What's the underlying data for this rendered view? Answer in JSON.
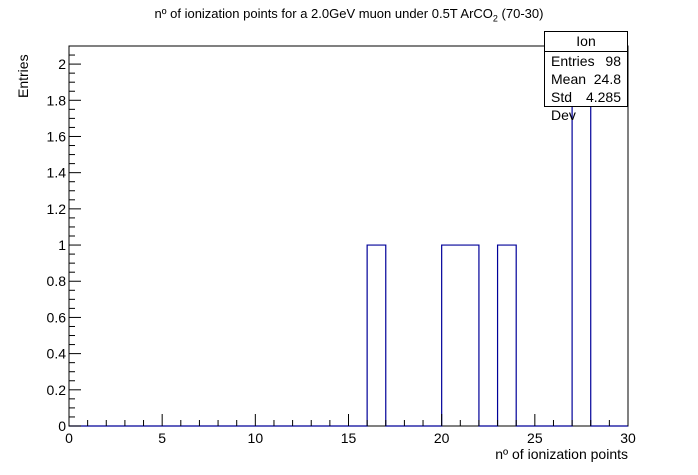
{
  "chart_data": {
    "type": "bar",
    "title_main": "nº of ionization points for a 2.0GeV muon under 0.5T ArCO",
    "title_sub": "2",
    "title_tail": " (70-30)",
    "xlabel": "nº of ionization points",
    "ylabel": "Entries",
    "xlim": [
      0,
      30
    ],
    "ylim": [
      0,
      2.1
    ],
    "bin_width": 1,
    "bins": [
      {
        "x": 16,
        "value": 1
      },
      {
        "x": 20,
        "value": 1
      },
      {
        "x": 21,
        "value": 1
      },
      {
        "x": 23,
        "value": 1
      },
      {
        "x": 27,
        "value": 2
      }
    ],
    "xticks": [
      "0",
      "5",
      "10",
      "15",
      "20",
      "25",
      "30"
    ],
    "yticks": [
      "0",
      "0.2",
      "0.4",
      "0.6",
      "0.8",
      "1",
      "1.2",
      "1.4",
      "1.6",
      "1.8",
      "2"
    ],
    "line_color": "#000099",
    "grid": false,
    "stats": {
      "title": "Ion",
      "entries_label": "Entries",
      "entries_value": "98",
      "mean_label": "Mean",
      "mean_value": "24.8",
      "std_label": "Std Dev",
      "std_value": "4.285"
    }
  }
}
